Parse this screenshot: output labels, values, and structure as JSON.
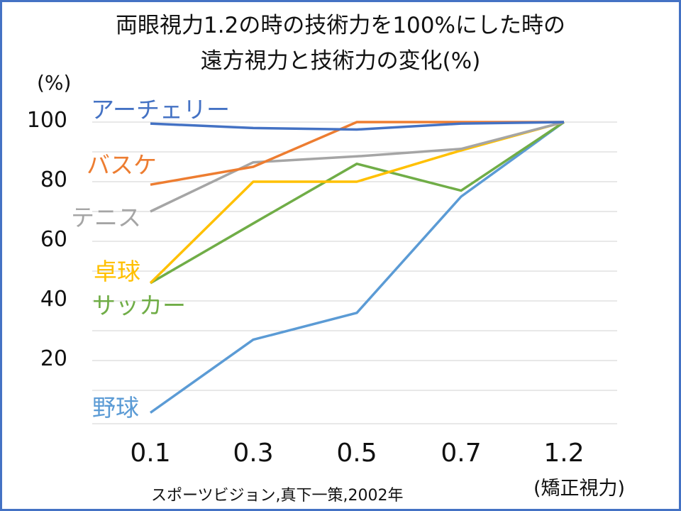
{
  "chart_data": {
    "type": "line",
    "title_line1": "両眼視力1.2の時の技術力を100%にした時の",
    "title_line2": "遠方視力と技術力の変化(%)",
    "ylabel": "(%)",
    "xlabel": "(矯正視力)",
    "categories": [
      "0.1",
      "0.3",
      "0.5",
      "0.7",
      "1.2"
    ],
    "yticks": [
      "100",
      "80",
      "60",
      "40",
      "20"
    ],
    "ytick_values": [
      100,
      80,
      60,
      40,
      20
    ],
    "ylim": [
      0,
      100
    ],
    "grid": true,
    "series": [
      {
        "name": "アーチェリー",
        "color": "#4472C4",
        "values": [
          99.5,
          98,
          97.5,
          99.5,
          100
        ]
      },
      {
        "name": "バスケ",
        "color": "#ED7D31",
        "values": [
          79,
          85,
          100,
          100,
          100
        ]
      },
      {
        "name": "テニス",
        "color": "#A5A5A5",
        "values": [
          70,
          86.5,
          88.5,
          91,
          100
        ]
      },
      {
        "name": "卓球",
        "color": "#FFC000",
        "values": [
          46,
          80,
          80,
          90.5,
          100
        ]
      },
      {
        "name": "サッカー",
        "color": "#70AD47",
        "values": [
          46,
          66,
          86,
          77,
          100
        ]
      },
      {
        "name": "野球",
        "color": "#5B9BD5",
        "values": [
          2.5,
          27,
          36,
          75,
          100
        ]
      }
    ],
    "source": "スポーツビジョン,真下一策,2002年"
  }
}
